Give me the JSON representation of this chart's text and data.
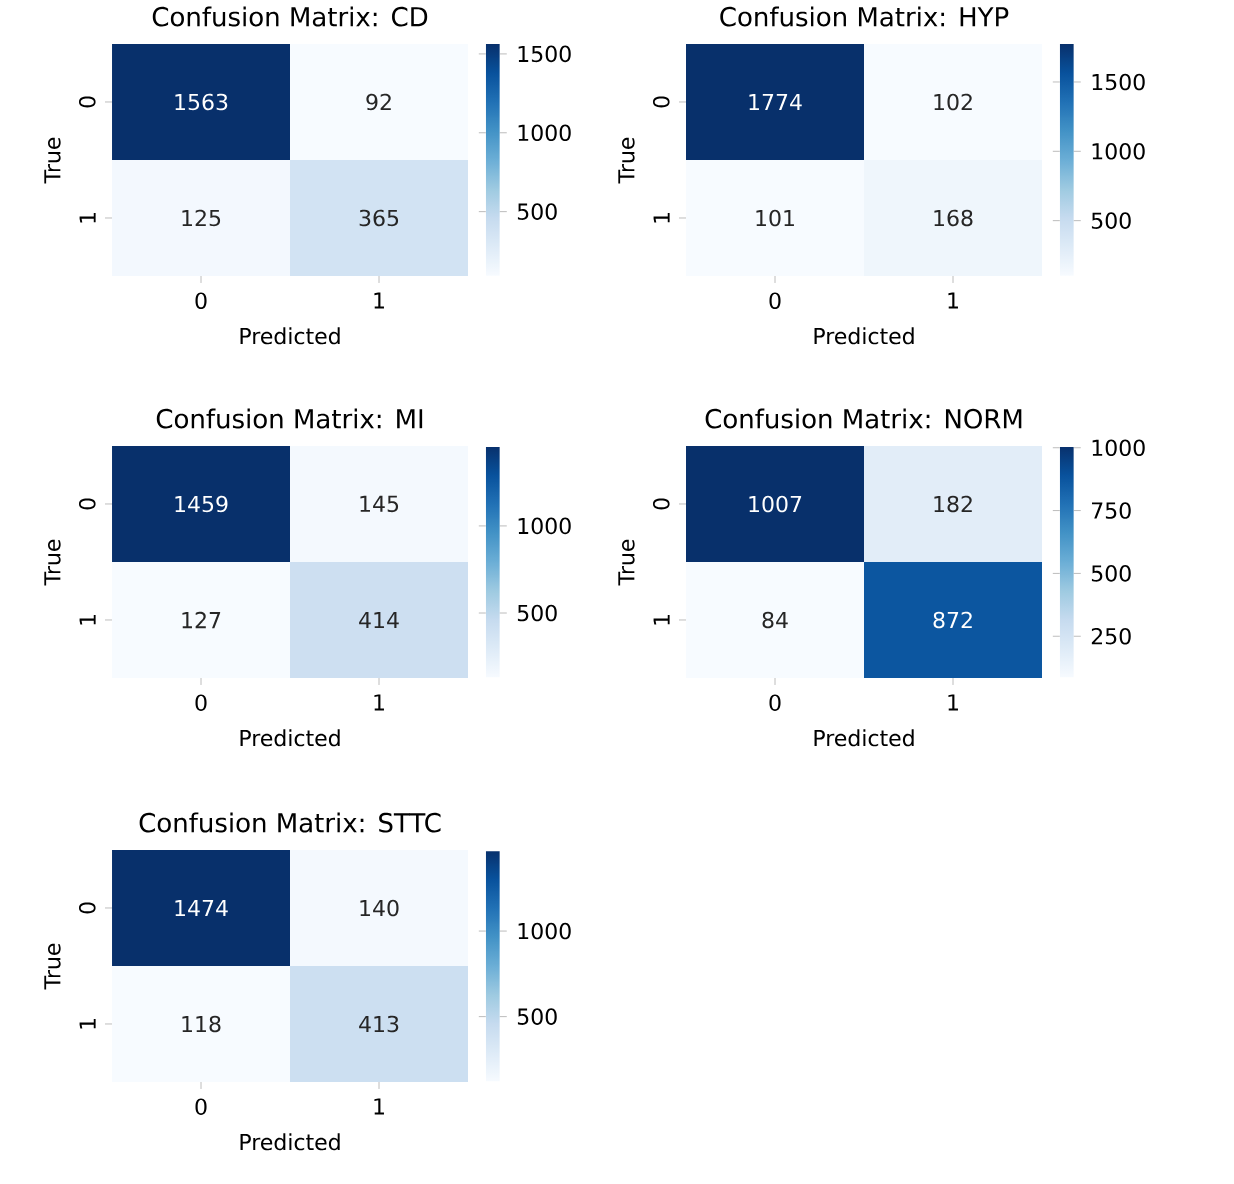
{
  "chart_data": [
    {
      "type": "heatmap",
      "title": "Confusion Matrix: CD",
      "xlabel": "Predicted",
      "ylabel": "True",
      "categories": [
        "0",
        "1"
      ],
      "y_categories": [
        "0",
        "1"
      ],
      "cells": [
        [
          1563,
          92
        ],
        [
          125,
          365
        ]
      ],
      "cell_labels": [
        [
          "1563",
          "92"
        ],
        [
          "125",
          "365"
        ]
      ],
      "clim": [
        92,
        1563
      ],
      "cticks": [
        500,
        1000,
        1500
      ]
    },
    {
      "type": "heatmap",
      "title": "Confusion Matrix: HYP",
      "xlabel": "Predicted",
      "ylabel": "True",
      "categories": [
        "0",
        "1"
      ],
      "y_categories": [
        "0",
        "1"
      ],
      "cells": [
        [
          1774,
          102
        ],
        [
          101,
          168
        ]
      ],
      "cell_labels": [
        [
          "1774",
          "102"
        ],
        [
          "101",
          "168"
        ]
      ],
      "clim": [
        101,
        1774
      ],
      "cticks": [
        500,
        1000,
        1500
      ]
    },
    {
      "type": "heatmap",
      "title": "Confusion Matrix: MI",
      "xlabel": "Predicted",
      "ylabel": "True",
      "categories": [
        "0",
        "1"
      ],
      "y_categories": [
        "0",
        "1"
      ],
      "cells": [
        [
          1459,
          145
        ],
        [
          127,
          414
        ]
      ],
      "cell_labels": [
        [
          "1459",
          "145"
        ],
        [
          "127",
          "414"
        ]
      ],
      "clim": [
        127,
        1459
      ],
      "cticks": [
        500,
        1000
      ]
    },
    {
      "type": "heatmap",
      "title": "Confusion Matrix: NORM",
      "xlabel": "Predicted",
      "ylabel": "True",
      "categories": [
        "0",
        "1"
      ],
      "y_categories": [
        "0",
        "1"
      ],
      "cells": [
        [
          1007,
          182
        ],
        [
          84,
          872
        ]
      ],
      "cell_labels": [
        [
          "1007",
          "182"
        ],
        [
          "84",
          "872"
        ]
      ],
      "clim": [
        84,
        1007
      ],
      "cticks": [
        250,
        500,
        750,
        1000
      ]
    },
    {
      "type": "heatmap",
      "title": "Confusion Matrix: STTC",
      "xlabel": "Predicted",
      "ylabel": "True",
      "categories": [
        "0",
        "1"
      ],
      "y_categories": [
        "0",
        "1"
      ],
      "cells": [
        [
          1474,
          140
        ],
        [
          118,
          413
        ]
      ],
      "cell_labels": [
        [
          "1474",
          "140"
        ],
        [
          "118",
          "413"
        ]
      ],
      "clim": [
        118,
        1474
      ],
      "cticks": [
        500,
        1000
      ]
    }
  ]
}
